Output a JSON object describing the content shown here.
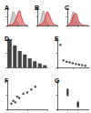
{
  "chart_data": [
    {
      "type": "line",
      "title": "A",
      "tick_labels": false,
      "grid": false,
      "x": [
        0,
        1,
        2,
        3,
        4,
        5,
        6,
        7,
        8,
        9,
        10
      ],
      "series": [
        {
          "color": "#999999",
          "values": [
            0,
            6,
            40,
            80,
            55,
            22,
            6,
            2,
            0,
            0,
            0
          ]
        },
        {
          "color": "#e02020",
          "values": [
            0,
            1,
            4,
            12,
            30,
            62,
            85,
            52,
            20,
            5,
            0
          ]
        }
      ],
      "xlim": [
        0,
        10
      ],
      "xticks": [
        0,
        5,
        10
      ],
      "ylim": [
        0,
        100
      ],
      "yticks": [
        0,
        50,
        100
      ]
    },
    {
      "type": "line",
      "title": "B",
      "tick_labels": false,
      "grid": false,
      "x": [
        0,
        1,
        2,
        3,
        4,
        5,
        6,
        7,
        8,
        9,
        10
      ],
      "series": [
        {
          "color": "#999999",
          "values": [
            0,
            8,
            45,
            85,
            50,
            18,
            5,
            1,
            0,
            0,
            0
          ]
        },
        {
          "color": "#e02020",
          "values": [
            0,
            2,
            8,
            20,
            45,
            80,
            60,
            30,
            10,
            2,
            0
          ]
        }
      ],
      "xlim": [
        0,
        10
      ],
      "xticks": [
        0,
        5,
        10
      ],
      "ylim": [
        0,
        100
      ],
      "yticks": [
        0,
        50,
        100
      ]
    },
    {
      "type": "line",
      "title": "C",
      "tick_labels": false,
      "grid": false,
      "x": [
        0,
        1,
        2,
        3,
        4,
        5,
        6,
        7,
        8,
        9,
        10
      ],
      "series": [
        {
          "color": "#999999",
          "values": [
            0,
            10,
            50,
            80,
            45,
            15,
            4,
            1,
            0,
            0,
            0
          ]
        },
        {
          "color": "#e02020",
          "values": [
            0,
            5,
            25,
            60,
            70,
            40,
            15,
            5,
            1,
            0,
            0
          ]
        }
      ],
      "xlim": [
        0,
        10
      ],
      "xticks": [
        0,
        5,
        10
      ],
      "ylim": [
        0,
        100
      ],
      "yticks": [
        0,
        50,
        100
      ]
    },
    {
      "type": "bar",
      "title": "D",
      "tick_labels": false,
      "grid": false,
      "categories": [
        null,
        null,
        null,
        null,
        null,
        null,
        null,
        null
      ],
      "values": [
        100,
        78,
        58,
        46,
        32,
        22,
        14,
        8
      ],
      "color": "#444444",
      "ylim": [
        0,
        100
      ],
      "yticks": [
        0,
        50,
        100
      ]
    },
    {
      "type": "scatter",
      "title": "E",
      "tick_labels": false,
      "grid": false,
      "x": [
        1,
        2,
        3,
        4,
        5,
        6,
        7,
        8,
        9
      ],
      "y": [
        80,
        25,
        20,
        18,
        15,
        12,
        10,
        8,
        6
      ],
      "color": "#222222",
      "marker": "circle",
      "xlim": [
        0,
        10
      ],
      "xticks": [
        0,
        5,
        10
      ],
      "ylim": [
        0,
        100
      ],
      "yticks": [
        0,
        50,
        100
      ]
    },
    {
      "type": "scatter",
      "title": "F",
      "tick_labels": false,
      "grid": false,
      "x": [
        1,
        1.5,
        2,
        2.5,
        3,
        4,
        5,
        6,
        7
      ],
      "y": [
        20,
        30,
        25,
        45,
        40,
        55,
        60,
        70,
        80
      ],
      "color": "#222222",
      "marker": "circle",
      "xlim": [
        0,
        10
      ],
      "xticks": [
        0,
        5,
        10
      ],
      "ylim": [
        0,
        100
      ],
      "yticks": [
        0,
        50,
        100
      ]
    },
    {
      "type": "scatter",
      "title": "G",
      "tick_labels": false,
      "grid": false,
      "x": [
        1,
        1,
        1,
        1,
        1,
        2,
        2,
        2,
        2,
        2
      ],
      "y": [
        70,
        60,
        55,
        50,
        65,
        20,
        15,
        25,
        10,
        18
      ],
      "color": "#222222",
      "marker": "circle",
      "xlim": [
        0,
        3
      ],
      "xticks": [
        0,
        1,
        2,
        3
      ],
      "ylim": [
        0,
        100
      ],
      "yticks": [
        0,
        50,
        100
      ]
    }
  ]
}
